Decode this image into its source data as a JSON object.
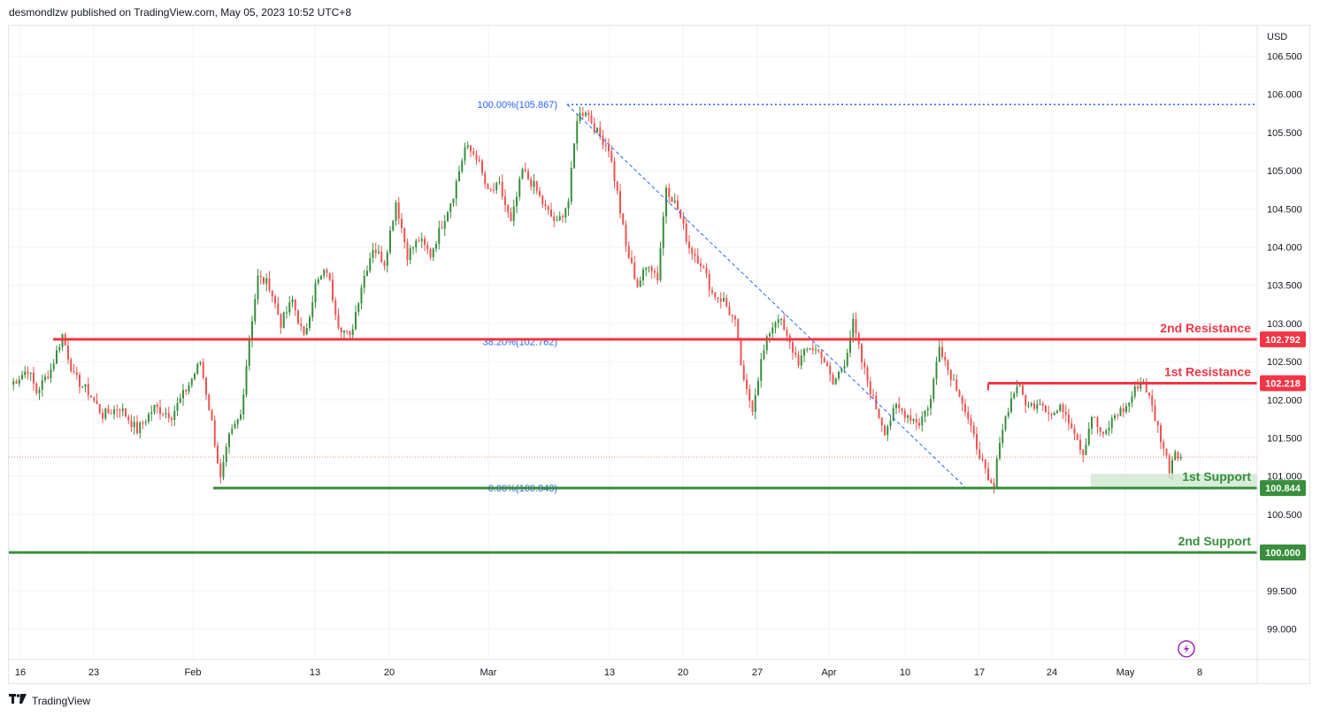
{
  "header": {
    "published_text": "desmondlzw published on TradingView.com, May 05, 2023 10:52 UTC+8"
  },
  "footer": {
    "brand": "TradingView"
  },
  "icons": {
    "brand_logo": "tradingview-logo-icon",
    "lightning": "lightning-icon"
  },
  "colors": {
    "up": "#388e3c",
    "down": "#ef5350",
    "resistance": "#f23645",
    "support": "#388e3c",
    "fib": "#2962ff",
    "grid": "#f0f3fa",
    "zone": "#c8e6c9"
  },
  "chart_data": {
    "type": "candlestick",
    "symbol_currency": "USD",
    "ylim": [
      98.6,
      106.9
    ],
    "y_ticks": [
      "106.500",
      "106.000",
      "105.500",
      "105.000",
      "104.500",
      "104.000",
      "103.500",
      "103.000",
      "102.500",
      "102.000",
      "101.500",
      "101.000",
      "100.500",
      "100.000",
      "99.500",
      "99.000"
    ],
    "x_ticks": [
      "16",
      "23",
      "Feb",
      "13",
      "20",
      "Mar",
      "13",
      "20",
      "27",
      "Apr",
      "10",
      "17",
      "24",
      "May",
      "8"
    ],
    "levels": [
      {
        "name": "2nd Resistance",
        "value": 102.792,
        "label": "102.792",
        "kind": "resistance"
      },
      {
        "name": "1st Resistance",
        "value": 102.218,
        "label": "102.218",
        "kind": "resistance"
      },
      {
        "name": "1st Support",
        "value": 100.844,
        "label": "100.844",
        "kind": "support"
      },
      {
        "name": "2nd Support",
        "value": 100.0,
        "label": "100.000",
        "kind": "support"
      }
    ],
    "fib": [
      {
        "label": "100.00%(105.867)",
        "value": 105.867
      },
      {
        "label": "38.20%(102.762)",
        "value": 102.762
      },
      {
        "label": "0.00%(100.843)",
        "value": 100.843
      }
    ],
    "current_price": 101.25,
    "anchors": [
      [
        0,
        102.2
      ],
      [
        6,
        102.4
      ],
      [
        9,
        102.1
      ],
      [
        14,
        102.4
      ],
      [
        18,
        102.85
      ],
      [
        22,
        102.3
      ],
      [
        27,
        102.1
      ],
      [
        32,
        101.8
      ],
      [
        38,
        101.9
      ],
      [
        44,
        101.6
      ],
      [
        50,
        101.9
      ],
      [
        56,
        101.8
      ],
      [
        62,
        102.2
      ],
      [
        66,
        102.5
      ],
      [
        70,
        101.7
      ],
      [
        73,
        100.95
      ],
      [
        76,
        101.5
      ],
      [
        80,
        101.8
      ],
      [
        83,
        102.8
      ],
      [
        86,
        103.6
      ],
      [
        90,
        103.5
      ],
      [
        94,
        103.0
      ],
      [
        98,
        103.3
      ],
      [
        102,
        102.8
      ],
      [
        106,
        103.5
      ],
      [
        110,
        103.7
      ],
      [
        114,
        103.0
      ],
      [
        118,
        102.8
      ],
      [
        122,
        103.5
      ],
      [
        126,
        104.0
      ],
      [
        130,
        103.8
      ],
      [
        134,
        104.6
      ],
      [
        138,
        103.9
      ],
      [
        142,
        104.1
      ],
      [
        146,
        103.9
      ],
      [
        150,
        104.3
      ],
      [
        154,
        104.7
      ],
      [
        158,
        105.3
      ],
      [
        162,
        105.2
      ],
      [
        166,
        104.7
      ],
      [
        170,
        104.8
      ],
      [
        174,
        104.3
      ],
      [
        178,
        105.0
      ],
      [
        182,
        104.8
      ],
      [
        186,
        104.5
      ],
      [
        190,
        104.3
      ],
      [
        194,
        104.6
      ],
      [
        197,
        105.7
      ],
      [
        200,
        105.8
      ],
      [
        204,
        105.5
      ],
      [
        208,
        105.3
      ],
      [
        211,
        104.7
      ],
      [
        214,
        104.0
      ],
      [
        218,
        103.5
      ],
      [
        222,
        103.8
      ],
      [
        225,
        103.6
      ],
      [
        228,
        104.8
      ],
      [
        232,
        104.5
      ],
      [
        236,
        104.0
      ],
      [
        240,
        103.8
      ],
      [
        244,
        103.4
      ],
      [
        248,
        103.3
      ],
      [
        252,
        103.0
      ],
      [
        255,
        102.2
      ],
      [
        258,
        101.9
      ],
      [
        261,
        102.5
      ],
      [
        264,
        102.9
      ],
      [
        267,
        103.1
      ],
      [
        270,
        102.8
      ],
      [
        274,
        102.5
      ],
      [
        278,
        102.7
      ],
      [
        282,
        102.6
      ],
      [
        286,
        102.2
      ],
      [
        290,
        102.5
      ],
      [
        293,
        103.0
      ],
      [
        296,
        102.5
      ],
      [
        300,
        102.0
      ],
      [
        304,
        101.6
      ],
      [
        308,
        101.9
      ],
      [
        312,
        101.8
      ],
      [
        316,
        101.7
      ],
      [
        320,
        102.0
      ],
      [
        323,
        102.75
      ],
      [
        326,
        102.4
      ],
      [
        330,
        102.1
      ],
      [
        334,
        101.6
      ],
      [
        337,
        101.3
      ],
      [
        340,
        100.9
      ],
      [
        342,
        100.85
      ],
      [
        344,
        101.5
      ],
      [
        347,
        101.9
      ],
      [
        350,
        102.2
      ],
      [
        354,
        101.9
      ],
      [
        358,
        102.0
      ],
      [
        362,
        101.8
      ],
      [
        366,
        101.9
      ],
      [
        370,
        101.6
      ],
      [
        373,
        101.3
      ],
      [
        376,
        101.8
      ],
      [
        380,
        101.5
      ],
      [
        384,
        101.8
      ],
      [
        388,
        101.9
      ],
      [
        392,
        102.2
      ],
      [
        394,
        102.25
      ],
      [
        397,
        101.9
      ],
      [
        400,
        101.5
      ],
      [
        403,
        101.1
      ],
      [
        405,
        101.35
      ],
      [
        407,
        101.25
      ]
    ]
  }
}
